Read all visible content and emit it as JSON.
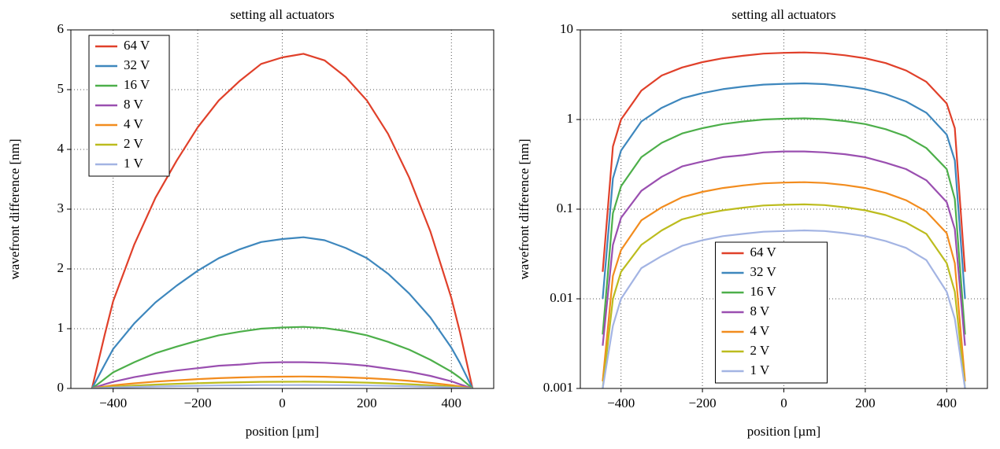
{
  "chart_data": [
    {
      "type": "line",
      "title": "setting all actuators",
      "xlabel": "position [µm]",
      "ylabel": "wavefront difference [nm]",
      "x": [
        -450,
        -420,
        -400,
        -350,
        -300,
        -250,
        -200,
        -150,
        -100,
        -50,
        0,
        50,
        100,
        150,
        200,
        250,
        300,
        350,
        400,
        420,
        450
      ],
      "series": [
        {
          "name": "64 V",
          "color": "#e0402a",
          "values": [
            0,
            0.9,
            1.46,
            2.41,
            3.19,
            3.81,
            4.37,
            4.82,
            5.15,
            5.43,
            5.54,
            5.6,
            5.49,
            5.21,
            4.82,
            4.26,
            3.53,
            2.63,
            1.51,
            0.95,
            0
          ]
        },
        {
          "name": "32 V",
          "color": "#3e87bd",
          "values": [
            0,
            0.4,
            0.66,
            1.09,
            1.44,
            1.72,
            1.97,
            2.18,
            2.33,
            2.45,
            2.5,
            2.53,
            2.48,
            2.35,
            2.18,
            1.92,
            1.59,
            1.19,
            0.68,
            0.43,
            0
          ]
        },
        {
          "name": "16 V",
          "color": "#4daf4a",
          "values": [
            0,
            0.16,
            0.27,
            0.44,
            0.59,
            0.7,
            0.8,
            0.89,
            0.95,
            1.0,
            1.02,
            1.03,
            1.01,
            0.96,
            0.89,
            0.78,
            0.65,
            0.48,
            0.28,
            0.18,
            0
          ]
        },
        {
          "name": "8 V",
          "color": "#9a4fb0",
          "values": [
            0,
            0.07,
            0.11,
            0.19,
            0.25,
            0.3,
            0.34,
            0.38,
            0.4,
            0.43,
            0.44,
            0.44,
            0.43,
            0.41,
            0.38,
            0.33,
            0.28,
            0.21,
            0.12,
            0.07,
            0
          ]
        },
        {
          "name": "4 V",
          "color": "#f28c1e",
          "values": [
            0,
            0.032,
            0.052,
            0.086,
            0.114,
            0.136,
            0.156,
            0.172,
            0.184,
            0.194,
            0.198,
            0.2,
            0.196,
            0.186,
            0.172,
            0.152,
            0.126,
            0.094,
            0.054,
            0.034,
            0
          ]
        },
        {
          "name": "2 V",
          "color": "#bcbc1e",
          "values": [
            0,
            0.018,
            0.029,
            0.049,
            0.064,
            0.077,
            0.088,
            0.097,
            0.104,
            0.11,
            0.112,
            0.113,
            0.111,
            0.105,
            0.097,
            0.086,
            0.071,
            0.053,
            0.031,
            0.019,
            0
          ]
        },
        {
          "name": "1 V",
          "color": "#a3b4e3",
          "values": [
            0,
            0.009,
            0.015,
            0.025,
            0.033,
            0.039,
            0.045,
            0.05,
            0.053,
            0.056,
            0.057,
            0.058,
            0.057,
            0.054,
            0.05,
            0.044,
            0.037,
            0.027,
            0.016,
            0.01,
            0
          ]
        }
      ],
      "xlim": [
        -500,
        500
      ],
      "xticks": [
        {
          "value": -400,
          "label": "−400"
        },
        {
          "value": -200,
          "label": "−200"
        },
        0,
        200,
        400
      ],
      "ylim": [
        0,
        6
      ],
      "yticks": [
        0,
        1,
        2,
        3,
        4,
        5,
        6
      ],
      "grid": true,
      "legend": "upper left"
    },
    {
      "type": "line",
      "title": "setting all actuators",
      "xlabel": "position [µm]",
      "ylabel": "wavefront difference [nm]",
      "x": [
        -445,
        -420,
        -400,
        -350,
        -300,
        -250,
        -200,
        -150,
        -100,
        -50,
        0,
        50,
        100,
        150,
        200,
        250,
        300,
        350,
        400,
        420,
        445
      ],
      "series": [
        {
          "name": "64 V",
          "color": "#e0402a",
          "values": [
            0.02,
            0.5,
            1.0,
            2.1,
            3.1,
            3.81,
            4.37,
            4.82,
            5.15,
            5.43,
            5.54,
            5.6,
            5.49,
            5.21,
            4.82,
            4.26,
            3.53,
            2.63,
            1.51,
            0.8,
            0.02
          ]
        },
        {
          "name": "32 V",
          "color": "#3e87bd",
          "values": [
            0.01,
            0.22,
            0.45,
            0.95,
            1.35,
            1.72,
            1.97,
            2.18,
            2.33,
            2.45,
            2.5,
            2.53,
            2.48,
            2.35,
            2.18,
            1.92,
            1.59,
            1.19,
            0.68,
            0.35,
            0.01
          ]
        },
        {
          "name": "16 V",
          "color": "#4daf4a",
          "values": [
            0.004,
            0.09,
            0.18,
            0.38,
            0.55,
            0.7,
            0.8,
            0.89,
            0.95,
            1.0,
            1.02,
            1.03,
            1.01,
            0.96,
            0.89,
            0.78,
            0.65,
            0.48,
            0.28,
            0.13,
            0.004
          ]
        },
        {
          "name": "8 V",
          "color": "#9a4fb0",
          "values": [
            0.003,
            0.04,
            0.08,
            0.16,
            0.23,
            0.3,
            0.34,
            0.38,
            0.4,
            0.43,
            0.44,
            0.44,
            0.43,
            0.41,
            0.38,
            0.33,
            0.28,
            0.21,
            0.12,
            0.06,
            0.003
          ]
        },
        {
          "name": "4 V",
          "color": "#f28c1e",
          "values": [
            0.0012,
            0.018,
            0.035,
            0.075,
            0.105,
            0.136,
            0.156,
            0.172,
            0.184,
            0.194,
            0.198,
            0.2,
            0.196,
            0.186,
            0.172,
            0.152,
            0.126,
            0.094,
            0.054,
            0.025,
            0.0012
          ]
        },
        {
          "name": "2 V",
          "color": "#bcbc1e",
          "values": [
            0.001,
            0.01,
            0.02,
            0.04,
            0.058,
            0.077,
            0.088,
            0.097,
            0.104,
            0.11,
            0.112,
            0.113,
            0.111,
            0.105,
            0.097,
            0.086,
            0.071,
            0.053,
            0.025,
            0.012,
            0.001
          ]
        },
        {
          "name": "1 V",
          "color": "#a3b4e3",
          "values": [
            0.001,
            0.005,
            0.01,
            0.022,
            0.03,
            0.039,
            0.045,
            0.05,
            0.053,
            0.056,
            0.057,
            0.058,
            0.057,
            0.054,
            0.05,
            0.044,
            0.037,
            0.027,
            0.012,
            0.006,
            0.001
          ]
        }
      ],
      "xlim": [
        -500,
        500
      ],
      "xticks": [
        {
          "value": -400,
          "label": "−400"
        },
        {
          "value": -200,
          "label": "−200"
        },
        0,
        200,
        400
      ],
      "ylim": [
        0.001,
        10
      ],
      "yticks": [
        0.001,
        0.01,
        0.1,
        1,
        10
      ],
      "log_y": true,
      "grid": true,
      "legend": "lower center"
    }
  ]
}
